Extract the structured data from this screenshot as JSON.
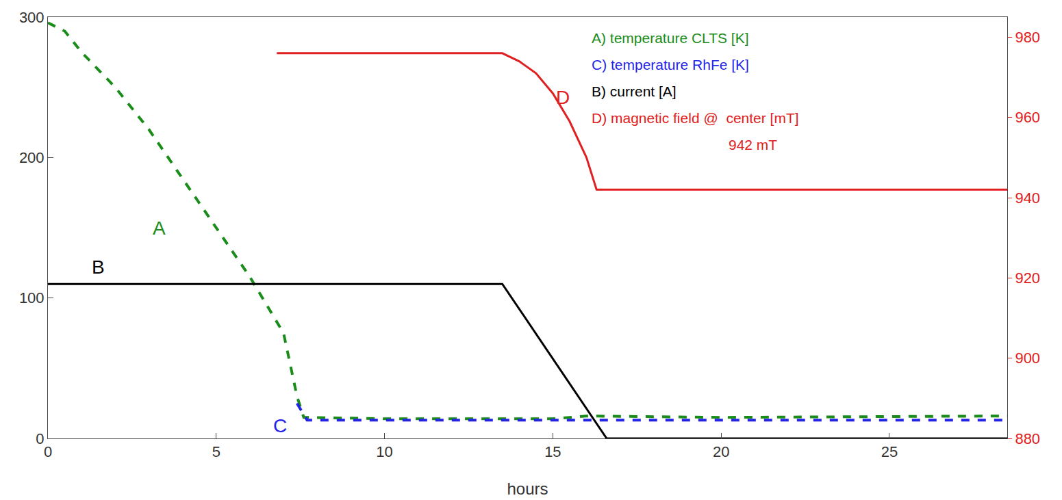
{
  "chart_data": {
    "type": "line",
    "x_label": "hours",
    "xlim": [
      0,
      28.5
    ],
    "xticks": [
      0,
      5,
      10,
      15,
      20,
      25
    ],
    "ylim": [
      0,
      300
    ],
    "yticks": [
      0,
      100,
      200,
      300
    ],
    "y2lim": [
      880,
      985
    ],
    "y2ticks": [
      880,
      900,
      920,
      940,
      960,
      980
    ],
    "grid": false,
    "series": [
      {
        "name": "A) temperature CLTS [K]",
        "color": "#1a8c1a",
        "line_style": "dash",
        "x": [
          0,
          0.5,
          1,
          2,
          3,
          4,
          5,
          6,
          7,
          7.4,
          7.6,
          10,
          15,
          16,
          20,
          28.5
        ],
        "values": [
          296,
          290,
          275,
          250,
          220,
          185,
          150,
          115,
          75,
          30,
          15,
          14,
          14,
          16,
          15,
          16
        ]
      },
      {
        "name": "C) temperature RhFe [K]",
        "color": "#2323e6",
        "line_style": "dash",
        "x": [
          7.4,
          7.7,
          10,
          15,
          20,
          28.5
        ],
        "values": [
          25,
          13,
          13,
          13,
          13,
          13
        ]
      },
      {
        "name": "B) current [A]",
        "color": "#000000",
        "line_style": "solid",
        "x": [
          0,
          13.5,
          16.6,
          28.5
        ],
        "values": [
          110,
          110,
          0,
          0
        ]
      },
      {
        "name": "D) magnetic field @  center [mT]",
        "color": "#e02020",
        "line_style": "solid",
        "axis": "y2",
        "x": [
          6.8,
          13.5,
          14,
          14.5,
          15,
          15.5,
          16,
          16.3,
          20,
          28.5
        ],
        "values": [
          976,
          976,
          974,
          971,
          966,
          959,
          950,
          942,
          942,
          942
        ]
      }
    ],
    "annotations": [
      {
        "text": "A",
        "x": 3.3,
        "y": 150,
        "color": "#1a8c1a"
      },
      {
        "text": "B",
        "x": 1.5,
        "y": 122,
        "color": "#000000"
      },
      {
        "text": "C",
        "x": 6.9,
        "y": 9,
        "color": "#2323e6"
      },
      {
        "text": "D",
        "x": 15.3,
        "y": 965,
        "axis": "y2",
        "color": "#e02020"
      },
      {
        "text": "942 mT",
        "legend_line": true,
        "color": "#e02020"
      }
    ]
  }
}
